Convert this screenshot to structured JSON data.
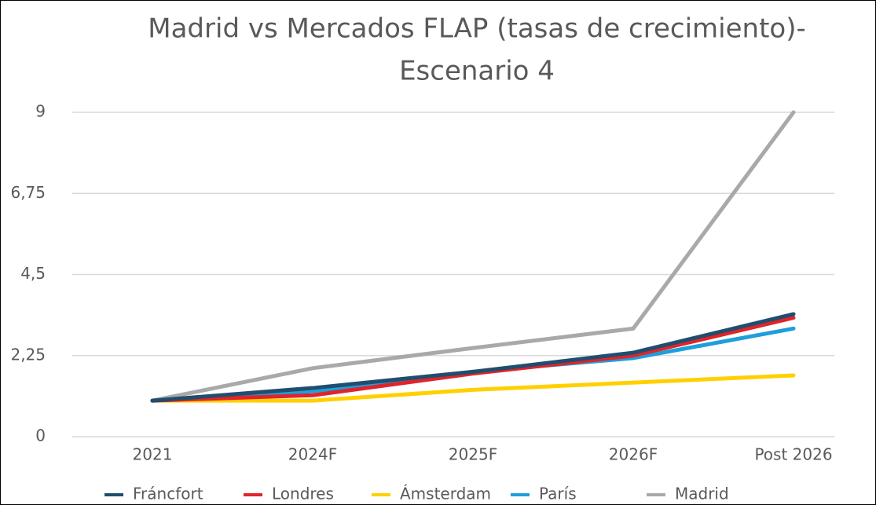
{
  "chart_data": {
    "type": "line",
    "title": [
      "Madrid vs Mercados FLAP (tasas de crecimiento)-",
      "Escenario 4"
    ],
    "categories": [
      "2021",
      "2024F",
      "2025F",
      "2026F",
      "Post 2026"
    ],
    "series": [
      {
        "name": "Fráncfort",
        "color": "#1f4e6e",
        "values": [
          1.0,
          1.35,
          1.8,
          2.33,
          3.4
        ]
      },
      {
        "name": "Londres",
        "color": "#e0242a",
        "values": [
          1.0,
          1.15,
          1.75,
          2.25,
          3.3
        ]
      },
      {
        "name": "Ámsterdam",
        "color": "#ffd000",
        "values": [
          1.0,
          1.0,
          1.3,
          1.5,
          1.7
        ]
      },
      {
        "name": "París",
        "color": "#1e9fdc",
        "values": [
          1.0,
          1.26,
          1.8,
          2.18,
          3.0
        ]
      },
      {
        "name": "Madrid",
        "color": "#a9a9a9",
        "values": [
          1.0,
          1.9,
          2.46,
          3.0,
          9
        ]
      }
    ],
    "ylim": [
      0,
      9
    ],
    "yticks": [
      0,
      {
        "value": 2.25,
        "label": "2,25"
      },
      {
        "value": 4.5,
        "label": "4,5"
      },
      {
        "value": 6.75,
        "label": "6,75"
      },
      9
    ],
    "grid": true,
    "legend": "bottom"
  }
}
